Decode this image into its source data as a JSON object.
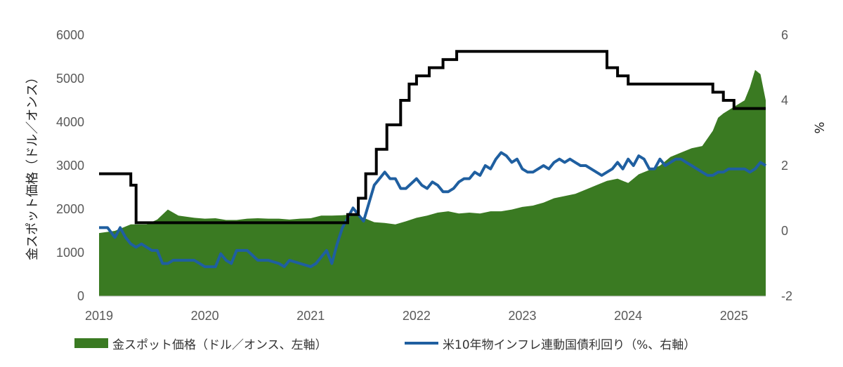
{
  "chart_data": {
    "type": "area",
    "x_ticks": [
      "2019",
      "2020",
      "2021",
      "2022",
      "2023",
      "2024",
      "2025"
    ],
    "y_left": {
      "label": "金スポット価格（ドル／オンス）",
      "ticks": [
        "0",
        "1000",
        "2000",
        "3000",
        "4000",
        "5000",
        "6000"
      ],
      "range": [
        0,
        6000
      ]
    },
    "y_right": {
      "label": "%",
      "ticks": [
        "-2",
        "0",
        "2",
        "4",
        "6"
      ],
      "range": [
        -2,
        6
      ]
    },
    "colors": {
      "gold": "#3a7a22",
      "tips": "#1f5fa0",
      "rate": "#000000"
    },
    "series": [
      {
        "name": "金スポット価格（ドル／オンス、左軸）",
        "kind": "area",
        "axis": "left",
        "x": [
          2019.0,
          2019.15,
          2019.3,
          2019.45,
          2019.55,
          2019.65,
          2019.75,
          2019.9,
          2020.0,
          2020.1,
          2020.2,
          2020.3,
          2020.4,
          2020.5,
          2020.6,
          2020.7,
          2020.8,
          2020.9,
          2021.0,
          2021.1,
          2021.2,
          2021.3,
          2021.4,
          2021.5,
          2021.6,
          2021.7,
          2021.8,
          2021.9,
          2022.0,
          2022.1,
          2022.2,
          2022.3,
          2022.4,
          2022.5,
          2022.6,
          2022.7,
          2022.8,
          2022.9,
          2023.0,
          2023.1,
          2023.2,
          2023.3,
          2023.4,
          2023.5,
          2023.6,
          2023.7,
          2023.8,
          2023.9,
          2024.0,
          2024.1,
          2024.2,
          2024.3,
          2024.4,
          2024.5,
          2024.6,
          2024.7,
          2024.8,
          2024.85,
          2024.9,
          2025.0,
          2025.1,
          2025.15,
          2025.2,
          2025.25,
          2025.3
        ],
        "values": [
          1450,
          1500,
          1650,
          1650,
          1760,
          1990,
          1850,
          1800,
          1780,
          1790,
          1750,
          1750,
          1780,
          1790,
          1780,
          1780,
          1760,
          1780,
          1790,
          1850,
          1850,
          1860,
          1880,
          1800,
          1700,
          1680,
          1650,
          1720,
          1800,
          1850,
          1920,
          1950,
          1900,
          1920,
          1900,
          1950,
          1950,
          1990,
          2050,
          2080,
          2150,
          2250,
          2300,
          2350,
          2450,
          2550,
          2650,
          2700,
          2600,
          2800,
          2900,
          3000,
          3200,
          3300,
          3400,
          3450,
          3800,
          4100,
          4200,
          4350,
          4500,
          4800,
          5200,
          5100,
          4500
        ]
      },
      {
        "name": "米10年物インフレ連動国債利回り（%、右軸）",
        "kind": "line",
        "axis": "right",
        "x": [
          2019.0,
          2019.08,
          2019.15,
          2019.2,
          2019.25,
          2019.3,
          2019.35,
          2019.4,
          2019.45,
          2019.5,
          2019.55,
          2019.6,
          2019.65,
          2019.7,
          2019.8,
          2019.9,
          2020.0,
          2020.1,
          2020.15,
          2020.2,
          2020.25,
          2020.3,
          2020.4,
          2020.5,
          2020.6,
          2020.7,
          2020.75,
          2020.8,
          2020.9,
          2021.0,
          2021.05,
          2021.1,
          2021.15,
          2021.2,
          2021.25,
          2021.3,
          2021.35,
          2021.4,
          2021.5,
          2021.6,
          2021.7,
          2021.75,
          2021.8,
          2021.85,
          2021.9,
          2022.0,
          2022.05,
          2022.1,
          2022.15,
          2022.2,
          2022.25,
          2022.3,
          2022.35,
          2022.4,
          2022.45,
          2022.5,
          2022.55,
          2022.6,
          2022.65,
          2022.7,
          2022.75,
          2022.8,
          2022.85,
          2022.9,
          2022.95,
          2023.0,
          2023.05,
          2023.1,
          2023.15,
          2023.2,
          2023.25,
          2023.3,
          2023.35,
          2023.4,
          2023.45,
          2023.5,
          2023.55,
          2023.6,
          2023.65,
          2023.7,
          2023.75,
          2023.8,
          2023.85,
          2023.9,
          2023.95,
          2024.0,
          2024.05,
          2024.1,
          2024.15,
          2024.2,
          2024.25,
          2024.3,
          2024.35,
          2024.4,
          2024.45,
          2024.5,
          2024.55,
          2024.6,
          2024.65,
          2024.7,
          2024.75,
          2024.8,
          2024.85,
          2024.9,
          2024.95,
          2025.0,
          2025.05,
          2025.1,
          2025.15,
          2025.2,
          2025.25,
          2025.3
        ],
        "values": [
          0.1,
          0.1,
          -0.2,
          0.1,
          -0.2,
          -0.4,
          -0.5,
          -0.4,
          -0.5,
          -0.6,
          -0.6,
          -1.0,
          -1.0,
          -0.9,
          -0.9,
          -0.9,
          -1.1,
          -1.1,
          -0.7,
          -0.9,
          -1.0,
          -0.6,
          -0.6,
          -0.9,
          -0.9,
          -1.0,
          -1.1,
          -0.9,
          -1.0,
          -1.1,
          -1.0,
          -0.8,
          -0.6,
          -1.0,
          -0.4,
          0.1,
          0.4,
          0.7,
          0.3,
          1.4,
          1.8,
          1.6,
          1.6,
          1.3,
          1.3,
          1.6,
          1.4,
          1.3,
          1.5,
          1.4,
          1.2,
          1.2,
          1.3,
          1.5,
          1.6,
          1.6,
          1.8,
          1.7,
          2.0,
          1.9,
          2.2,
          2.4,
          2.3,
          2.1,
          2.2,
          1.9,
          1.8,
          1.8,
          1.9,
          2.0,
          1.9,
          2.1,
          2.2,
          2.1,
          2.2,
          2.1,
          2.0,
          2.0,
          1.9,
          1.8,
          1.7,
          1.8,
          1.9,
          2.1,
          1.9,
          2.2,
          2.0,
          2.3,
          2.2,
          1.9,
          1.9,
          2.2,
          2.0,
          2.1,
          2.2,
          2.2,
          2.1,
          2.0,
          1.9,
          1.8,
          1.7,
          1.7,
          1.8,
          1.8,
          1.9,
          1.9,
          1.9,
          1.9,
          1.8,
          1.9,
          2.1,
          2.0
        ]
      },
      {
        "name": "",
        "kind": "step",
        "axis": "right",
        "x": [
          2019.0,
          2019.25,
          2019.3,
          2019.35,
          2021.3,
          2021.35,
          2021.45,
          2021.52,
          2021.62,
          2021.72,
          2021.85,
          2021.93,
          2022.0,
          2022.12,
          2022.25,
          2022.38,
          2022.62,
          2022.75,
          2023.75,
          2023.8,
          2023.9,
          2024.0,
          2024.1,
          2024.25,
          2024.5,
          2024.75,
          2024.8,
          2024.9,
          2025.0,
          2025.3
        ],
        "values": [
          1.75,
          1.75,
          1.4,
          0.25,
          0.25,
          0.5,
          1.0,
          1.75,
          2.5,
          3.25,
          4.0,
          4.5,
          4.75,
          5.0,
          5.25,
          5.5,
          5.5,
          5.5,
          5.5,
          5.0,
          4.75,
          4.5,
          4.5,
          4.5,
          4.5,
          4.5,
          4.25,
          4.0,
          3.75,
          3.75
        ]
      }
    ],
    "legend_position": "bottom"
  }
}
